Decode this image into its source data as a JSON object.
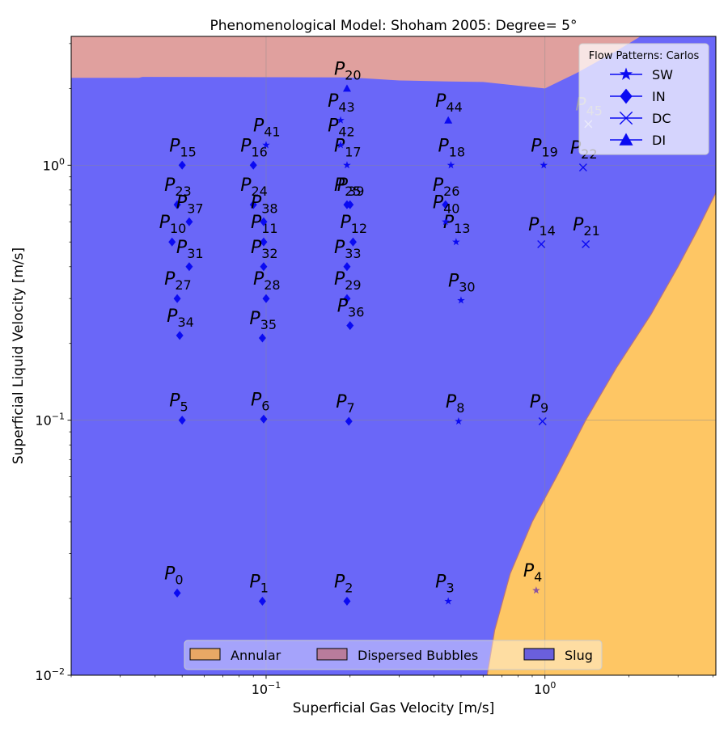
{
  "chart_data": {
    "type": "scatter",
    "title": "Phenomenological Model: Shoham 2005: Degree= 5°",
    "xlabel": "Superficial Gas Velocity [m/s]",
    "ylabel": "Superficial Liquid Velocity [m/s]",
    "x_scale": "log",
    "y_scale": "log",
    "xlim": [
      0.02,
      4.1
    ],
    "ylim": [
      0.01,
      3.2
    ],
    "x_ticks": [
      {
        "value": 0.1,
        "base": "10",
        "exp": "−1"
      },
      {
        "value": 1,
        "base": "10",
        "exp": "0"
      }
    ],
    "y_ticks": [
      {
        "value": 0.01,
        "base": "10",
        "exp": "−2"
      },
      {
        "value": 0.1,
        "base": "10",
        "exp": "−1"
      },
      {
        "value": 1,
        "base": "10",
        "exp": "0"
      }
    ],
    "grid": true,
    "regions": [
      {
        "name": "Slug",
        "color": "#6a67f8"
      },
      {
        "name": "Dispersed Bubbles",
        "color": "#e0a09e",
        "boundary": [
          [
            0.02,
            2.2
          ],
          [
            0.035,
            2.2
          ],
          [
            0.036,
            2.22
          ],
          [
            0.2,
            2.21
          ],
          [
            0.3,
            2.15
          ],
          [
            0.45,
            2.13
          ],
          [
            0.6,
            2.12
          ],
          [
            0.8,
            2.05
          ],
          [
            1.0,
            2.0
          ],
          [
            1.3,
            2.3
          ],
          [
            1.8,
            2.8
          ],
          [
            2.2,
            3.2
          ]
        ]
      },
      {
        "name": "Annular",
        "color": "#fec664",
        "boundary": [
          [
            0.62,
            0.01
          ],
          [
            0.66,
            0.015
          ],
          [
            0.75,
            0.025
          ],
          [
            0.9,
            0.04
          ],
          [
            1.1,
            0.06
          ],
          [
            1.4,
            0.1
          ],
          [
            1.8,
            0.16
          ],
          [
            2.4,
            0.26
          ],
          [
            3.0,
            0.4
          ],
          [
            3.5,
            0.55
          ],
          [
            4.1,
            0.78
          ]
        ]
      }
    ],
    "legend_regions": {
      "placement": "bottom-center",
      "entries": [
        {
          "label": "Annular",
          "color": "#e8a865"
        },
        {
          "label": "Dispersed Bubbles",
          "color": "#b87c9c"
        },
        {
          "label": "Slug",
          "color": "#6a5fdc"
        }
      ]
    },
    "legend_patterns": {
      "title": "Flow Patterns: Carlos",
      "placement": "top-right",
      "entries": [
        {
          "label": "SW",
          "marker": "star"
        },
        {
          "label": "IN",
          "marker": "diamond"
        },
        {
          "label": "DC",
          "marker": "x"
        },
        {
          "label": "DI",
          "marker": "triangle"
        }
      ]
    },
    "points": [
      {
        "id": "0",
        "x": 0.048,
        "y": 0.021,
        "marker": "diamond"
      },
      {
        "id": "1",
        "x": 0.097,
        "y": 0.0195,
        "marker": "diamond"
      },
      {
        "id": "2",
        "x": 0.195,
        "y": 0.0195,
        "marker": "diamond"
      },
      {
        "id": "3",
        "x": 0.45,
        "y": 0.0195,
        "marker": "star"
      },
      {
        "id": "4",
        "x": 0.93,
        "y": 0.0215,
        "marker": "star"
      },
      {
        "id": "5",
        "x": 0.05,
        "y": 0.1,
        "marker": "diamond"
      },
      {
        "id": "6",
        "x": 0.098,
        "y": 0.101,
        "marker": "diamond"
      },
      {
        "id": "7",
        "x": 0.198,
        "y": 0.099,
        "marker": "diamond"
      },
      {
        "id": "8",
        "x": 0.49,
        "y": 0.099,
        "marker": "star"
      },
      {
        "id": "9",
        "x": 0.98,
        "y": 0.099,
        "marker": "x"
      },
      {
        "id": "10",
        "x": 0.046,
        "y": 0.5,
        "marker": "diamond"
      },
      {
        "id": "11",
        "x": 0.098,
        "y": 0.5,
        "marker": "diamond"
      },
      {
        "id": "12",
        "x": 0.205,
        "y": 0.5,
        "marker": "diamond"
      },
      {
        "id": "13",
        "x": 0.48,
        "y": 0.5,
        "marker": "star"
      },
      {
        "id": "14",
        "x": 0.97,
        "y": 0.49,
        "marker": "x"
      },
      {
        "id": "15",
        "x": 0.05,
        "y": 1.0,
        "marker": "diamond"
      },
      {
        "id": "16",
        "x": 0.09,
        "y": 1.0,
        "marker": "diamond"
      },
      {
        "id": "17",
        "x": 0.195,
        "y": 1.0,
        "marker": "star"
      },
      {
        "id": "18",
        "x": 0.46,
        "y": 1.0,
        "marker": "star"
      },
      {
        "id": "19",
        "x": 0.99,
        "y": 1.0,
        "marker": "star"
      },
      {
        "id": "20",
        "x": 0.195,
        "y": 2.0,
        "marker": "triangle"
      },
      {
        "id": "21",
        "x": 1.4,
        "y": 0.49,
        "marker": "x"
      },
      {
        "id": "22",
        "x": 1.37,
        "y": 0.98,
        "marker": "x"
      },
      {
        "id": "23",
        "x": 0.048,
        "y": 0.7,
        "marker": "diamond"
      },
      {
        "id": "24",
        "x": 0.09,
        "y": 0.7,
        "marker": "diamond"
      },
      {
        "id": "25",
        "x": 0.195,
        "y": 0.7,
        "marker": "diamond"
      },
      {
        "id": "26",
        "x": 0.44,
        "y": 0.7,
        "marker": "diamond"
      },
      {
        "id": "27",
        "x": 0.048,
        "y": 0.3,
        "marker": "diamond"
      },
      {
        "id": "28",
        "x": 0.1,
        "y": 0.3,
        "marker": "diamond"
      },
      {
        "id": "29",
        "x": 0.195,
        "y": 0.3,
        "marker": "diamond"
      },
      {
        "id": "30",
        "x": 0.5,
        "y": 0.295,
        "marker": "star"
      },
      {
        "id": "31",
        "x": 0.053,
        "y": 0.4,
        "marker": "diamond"
      },
      {
        "id": "32",
        "x": 0.098,
        "y": 0.4,
        "marker": "diamond"
      },
      {
        "id": "33",
        "x": 0.195,
        "y": 0.4,
        "marker": "diamond"
      },
      {
        "id": "34",
        "x": 0.049,
        "y": 0.215,
        "marker": "diamond"
      },
      {
        "id": "35",
        "x": 0.097,
        "y": 0.21,
        "marker": "diamond"
      },
      {
        "id": "36",
        "x": 0.2,
        "y": 0.235,
        "marker": "diamond"
      },
      {
        "id": "37",
        "x": 0.053,
        "y": 0.6,
        "marker": "diamond"
      },
      {
        "id": "38",
        "x": 0.098,
        "y": 0.6,
        "marker": "diamond"
      },
      {
        "id": "39",
        "x": 0.2,
        "y": 0.7,
        "marker": "diamond"
      },
      {
        "id": "40",
        "x": 0.44,
        "y": 0.6,
        "marker": "star"
      },
      {
        "id": "41",
        "x": 0.1,
        "y": 1.2,
        "marker": "star"
      },
      {
        "id": "42",
        "x": 0.185,
        "y": 1.2,
        "marker": "star"
      },
      {
        "id": "43",
        "x": 0.185,
        "y": 1.5,
        "marker": "star"
      },
      {
        "id": "44",
        "x": 0.45,
        "y": 1.5,
        "marker": "triangle"
      },
      {
        "id": "45",
        "x": 1.43,
        "y": 1.45,
        "marker": "x"
      }
    ]
  }
}
